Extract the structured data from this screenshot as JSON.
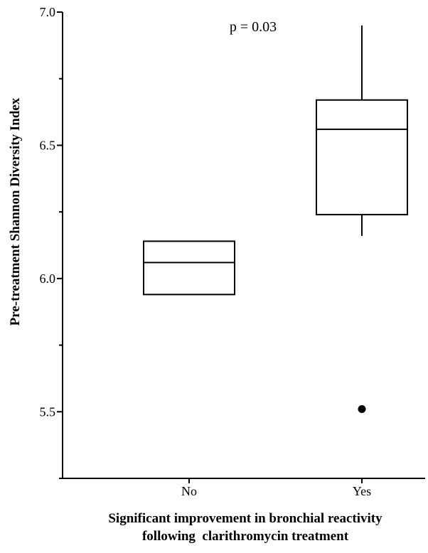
{
  "chart_data": {
    "type": "box",
    "title": "",
    "ylabel": "Pre-treatment Shannon Diversity Index",
    "xlabel_lines": [
      "Significant improvement in bronchial reactivity",
      "following  clarithromycin treatment"
    ],
    "categories": [
      "No",
      "Yes"
    ],
    "ylim": [
      5.25,
      7.0
    ],
    "yticks": [
      5.5,
      6.0,
      6.5,
      7.0
    ],
    "ytick_labels": [
      "5.5",
      "6.0",
      "6.5",
      "7.0"
    ],
    "boxes": [
      {
        "category": "No",
        "q1": 5.94,
        "median": 6.06,
        "q3": 6.14,
        "whisker_low": null,
        "whisker_high": null,
        "outliers": []
      },
      {
        "category": "Yes",
        "q1": 6.24,
        "median": 6.56,
        "q3": 6.67,
        "whisker_low": 6.16,
        "whisker_high": 6.95,
        "outliers": [
          5.51
        ]
      }
    ],
    "annotation": "p = 0.03",
    "grid": false,
    "legend": "none"
  },
  "colors": {
    "stroke": "#000000",
    "background": "#ffffff"
  }
}
